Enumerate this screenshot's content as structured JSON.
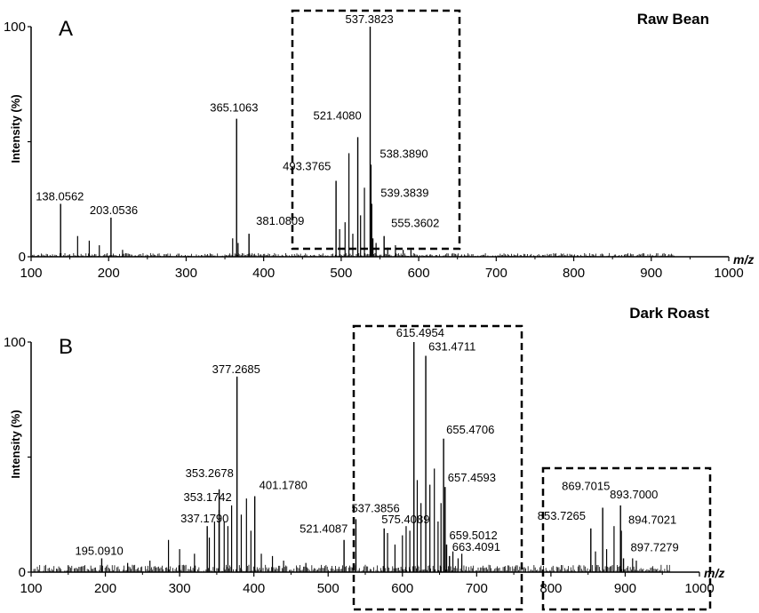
{
  "chart_data": [
    {
      "type": "bar",
      "panel": "A",
      "title": "Raw Bean",
      "xlabel": "m/z",
      "ylabel": "Intensity (%)",
      "xlim": [
        100,
        1000
      ],
      "ylim": [
        0,
        100
      ],
      "x_ticks": [
        "100",
        "200",
        "300",
        "400",
        "500",
        "600",
        "700",
        "800",
        "900",
        "1000"
      ],
      "y_ticks": [
        "100",
        "0"
      ],
      "peaks": [
        {
          "mz": 138.0562,
          "intensity": 23,
          "label": "138.0562"
        },
        {
          "mz": 203.0536,
          "intensity": 17,
          "label": "203.0536"
        },
        {
          "mz": 365.1063,
          "intensity": 60,
          "label": "365.1063"
        },
        {
          "mz": 381.0809,
          "intensity": 10,
          "label": "381.0809"
        },
        {
          "mz": 493.3765,
          "intensity": 33,
          "label": "493.3765"
        },
        {
          "mz": 521.408,
          "intensity": 52,
          "label": "521.4080"
        },
        {
          "mz": 537.3823,
          "intensity": 100,
          "label": "537.3823"
        },
        {
          "mz": 538.389,
          "intensity": 40,
          "label": "538.3890"
        },
        {
          "mz": 539.3839,
          "intensity": 23,
          "label": "539.3839"
        },
        {
          "mz": 555.3602,
          "intensity": 9,
          "label": "555.3602"
        }
      ],
      "minor_peaks": [
        {
          "mz": 160,
          "intensity": 9
        },
        {
          "mz": 175,
          "intensity": 7
        },
        {
          "mz": 188,
          "intensity": 5
        },
        {
          "mz": 218,
          "intensity": 3
        },
        {
          "mz": 360,
          "intensity": 8
        },
        {
          "mz": 367,
          "intensity": 6
        },
        {
          "mz": 498,
          "intensity": 12
        },
        {
          "mz": 505,
          "intensity": 15
        },
        {
          "mz": 510,
          "intensity": 45
        },
        {
          "mz": 515,
          "intensity": 10
        },
        {
          "mz": 525,
          "intensity": 18
        },
        {
          "mz": 530,
          "intensity": 30
        },
        {
          "mz": 541,
          "intensity": 8
        },
        {
          "mz": 545,
          "intensity": 6
        },
        {
          "mz": 560,
          "intensity": 4
        },
        {
          "mz": 570,
          "intensity": 5
        },
        {
          "mz": 580,
          "intensity": 3
        },
        {
          "mz": 590,
          "intensity": 3
        }
      ],
      "highlight_regions": [
        [
          430,
          648
        ]
      ]
    },
    {
      "type": "bar",
      "panel": "B",
      "title": "Dark Roast",
      "xlabel": "m/z",
      "ylabel": "Intensity (%)",
      "xlim": [
        100,
        1000
      ],
      "ylim": [
        0,
        100
      ],
      "x_ticks": [
        "100",
        "200",
        "300",
        "400",
        "500",
        "600",
        "700",
        "800",
        "900",
        "1000"
      ],
      "y_ticks": [
        "100",
        "0"
      ],
      "peaks": [
        {
          "mz": 195.091,
          "intensity": 6,
          "label": "195.0910"
        },
        {
          "mz": 337.179,
          "intensity": 20,
          "label": "337.1790"
        },
        {
          "mz": 353.1742,
          "intensity": 27,
          "label": "353.1742"
        },
        {
          "mz": 353.2678,
          "intensity": 36,
          "label": "353.2678"
        },
        {
          "mz": 377.2685,
          "intensity": 85,
          "label": "377.2685"
        },
        {
          "mz": 401.178,
          "intensity": 33,
          "label": "401.1780"
        },
        {
          "mz": 521.4087,
          "intensity": 14,
          "label": "521.4087"
        },
        {
          "mz": 537.3856,
          "intensity": 23,
          "label": "537.3856"
        },
        {
          "mz": 575.4089,
          "intensity": 19,
          "label": "575.4089"
        },
        {
          "mz": 615.4954,
          "intensity": 100,
          "label": "615.4954"
        },
        {
          "mz": 631.4711,
          "intensity": 94,
          "label": "631.4711"
        },
        {
          "mz": 655.4706,
          "intensity": 58,
          "label": "655.4706"
        },
        {
          "mz": 657.4593,
          "intensity": 37,
          "label": "657.4593"
        },
        {
          "mz": 659.5012,
          "intensity": 12,
          "label": "659.5012"
        },
        {
          "mz": 663.4091,
          "intensity": 7,
          "label": "663.4091"
        },
        {
          "mz": 853.7265,
          "intensity": 19,
          "label": "853.7265"
        },
        {
          "mz": 869.7015,
          "intensity": 28,
          "label": "869.7015"
        },
        {
          "mz": 893.7,
          "intensity": 29,
          "label": "893.7000"
        },
        {
          "mz": 894.7021,
          "intensity": 18,
          "label": "894.7021"
        },
        {
          "mz": 897.7279,
          "intensity": 6,
          "label": "897.7279"
        }
      ],
      "minor_peaks": [
        {
          "mz": 285,
          "intensity": 14
        },
        {
          "mz": 300,
          "intensity": 10
        },
        {
          "mz": 320,
          "intensity": 8
        },
        {
          "mz": 340,
          "intensity": 15
        },
        {
          "mz": 347,
          "intensity": 22
        },
        {
          "mz": 360,
          "intensity": 22
        },
        {
          "mz": 365,
          "intensity": 20
        },
        {
          "mz": 370,
          "intensity": 29
        },
        {
          "mz": 383,
          "intensity": 25
        },
        {
          "mz": 390,
          "intensity": 32
        },
        {
          "mz": 396,
          "intensity": 18
        },
        {
          "mz": 410,
          "intensity": 8
        },
        {
          "mz": 425,
          "intensity": 7
        },
        {
          "mz": 440,
          "intensity": 5
        },
        {
          "mz": 470,
          "intensity": 4
        },
        {
          "mz": 580,
          "intensity": 17
        },
        {
          "mz": 590,
          "intensity": 12
        },
        {
          "mz": 600,
          "intensity": 16
        },
        {
          "mz": 605,
          "intensity": 20
        },
        {
          "mz": 610,
          "intensity": 18
        },
        {
          "mz": 620,
          "intensity": 40
        },
        {
          "mz": 625,
          "intensity": 30
        },
        {
          "mz": 637,
          "intensity": 38
        },
        {
          "mz": 643,
          "intensity": 45
        },
        {
          "mz": 648,
          "intensity": 22
        },
        {
          "mz": 652,
          "intensity": 30
        },
        {
          "mz": 668,
          "intensity": 9
        },
        {
          "mz": 675,
          "intensity": 6
        },
        {
          "mz": 680,
          "intensity": 8
        },
        {
          "mz": 860,
          "intensity": 9
        },
        {
          "mz": 875,
          "intensity": 10
        },
        {
          "mz": 885,
          "intensity": 20
        },
        {
          "mz": 910,
          "intensity": 6
        },
        {
          "mz": 915,
          "intensity": 5
        },
        {
          "mz": 150,
          "intensity": 3
        },
        {
          "mz": 230,
          "intensity": 4
        },
        {
          "mz": 260,
          "intensity": 5
        }
      ],
      "highlight_regions": [
        [
          512,
          730
        ],
        [
          785,
          985
        ]
      ]
    }
  ]
}
